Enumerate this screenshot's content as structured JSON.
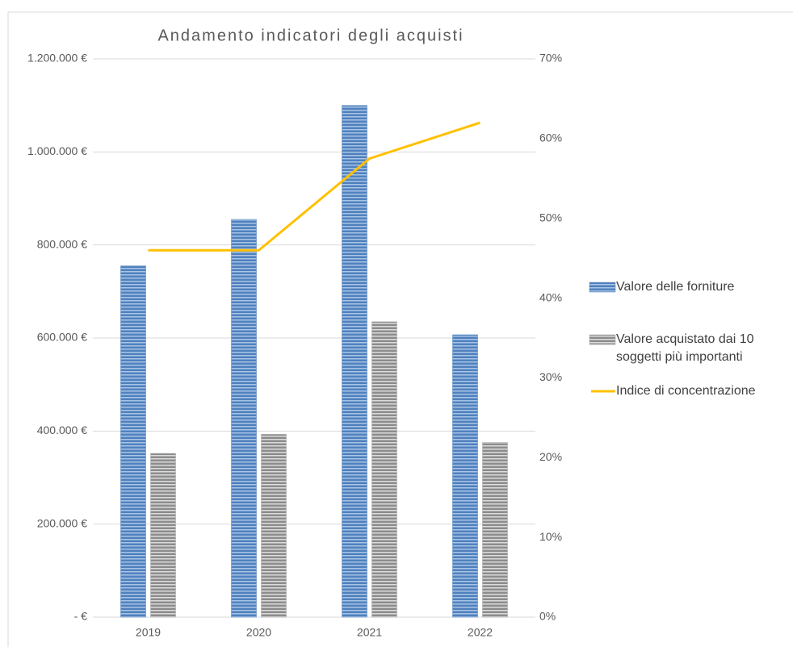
{
  "chart_data": {
    "type": "bar",
    "title": "Andamento indicatori degli acquisti",
    "categories": [
      "2019",
      "2020",
      "2021",
      "2022"
    ],
    "series": [
      {
        "name": "Valore delle forniture",
        "color": "#4f81bd",
        "values": [
          755000,
          855000,
          1100000,
          607000
        ]
      },
      {
        "name": "Valore acquistato dai 10 soggetti più importanti",
        "color": "#a6a6a6",
        "values": [
          352000,
          393000,
          635000,
          376000
        ]
      },
      {
        "name": "Indice di concentrazione",
        "color": "#ffc000",
        "type": "line",
        "axis": "y2",
        "values": [
          46,
          46,
          57.5,
          62
        ]
      }
    ],
    "ylim": [
      0,
      1200000
    ],
    "yticks": [
      {
        "value": 0,
        "label": "-   €"
      },
      {
        "value": 200000,
        "label": "200.000 €"
      },
      {
        "value": 400000,
        "label": "400.000 €"
      },
      {
        "value": 600000,
        "label": "600.000 €"
      },
      {
        "value": 800000,
        "label": "800.000 €"
      },
      {
        "value": 1000000,
        "label": "1.000.000 €"
      },
      {
        "value": 1200000,
        "label": "1.200.000 €"
      }
    ],
    "y2lim": [
      0,
      70
    ],
    "y2ticks": [
      {
        "value": 0,
        "label": "0%"
      },
      {
        "value": 10,
        "label": "10%"
      },
      {
        "value": 20,
        "label": "20%"
      },
      {
        "value": 30,
        "label": "30%"
      },
      {
        "value": 40,
        "label": "40%"
      },
      {
        "value": 50,
        "label": "50%"
      },
      {
        "value": 60,
        "label": "60%"
      },
      {
        "value": 70,
        "label": "70%"
      }
    ],
    "grid": true,
    "legend": "right"
  }
}
